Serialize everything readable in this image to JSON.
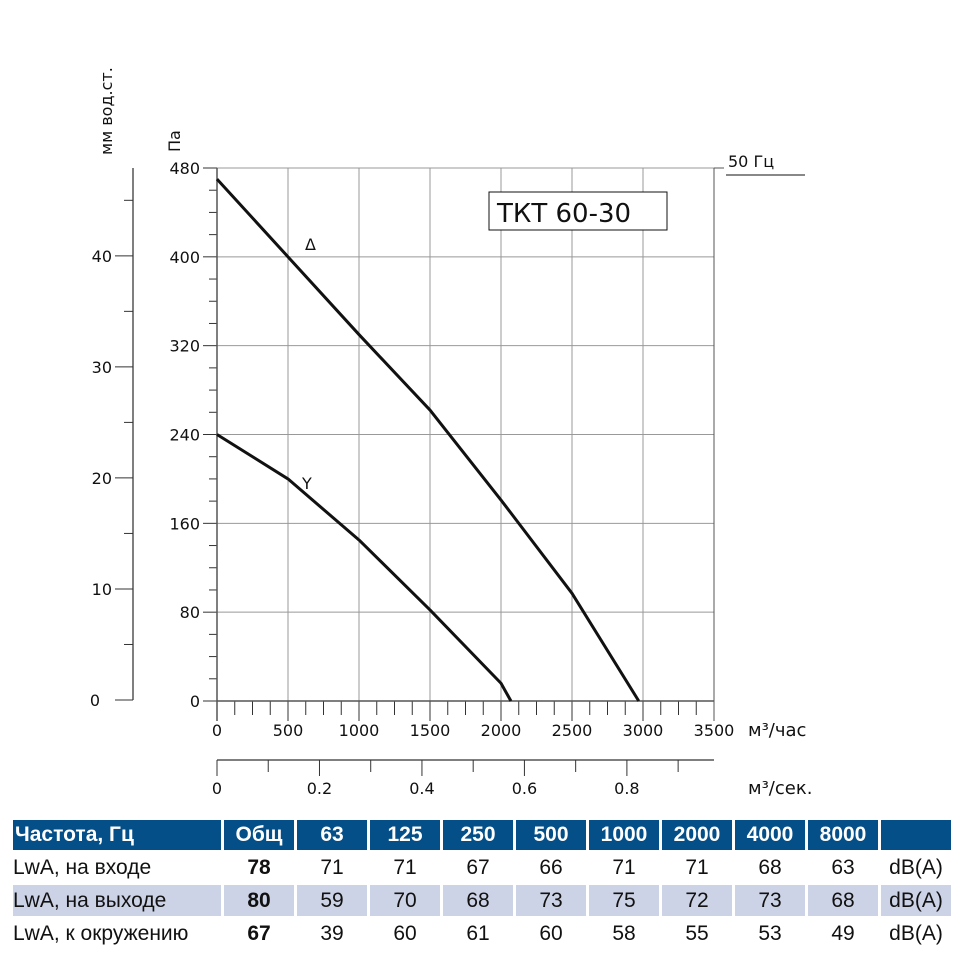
{
  "chart_data": {
    "type": "line",
    "title": "ТКТ 60-30",
    "frequency_label": "50 Гц",
    "xlabel": "м³/час",
    "x2label": "м³/сек.",
    "ylabel": "Па",
    "y2label": "мм вод.ст.",
    "xlim": [
      0,
      3500
    ],
    "ylim": [
      0,
      480
    ],
    "x2lim": [
      0,
      0.97
    ],
    "y2lim": [
      0,
      48
    ],
    "xticks": [
      "0",
      "500",
      "1000",
      "1500",
      "2000",
      "2500",
      "3000",
      "3500"
    ],
    "yticks": [
      "0",
      "80",
      "160",
      "240",
      "320",
      "400",
      "480"
    ],
    "x2ticks": [
      "0",
      "0.2",
      "0.4",
      "0.6",
      "0.8"
    ],
    "y2ticks": [
      "0",
      "10",
      "20",
      "30",
      "40"
    ],
    "grid": true,
    "series": [
      {
        "name": "Δ",
        "x": [
          0,
          500,
          1000,
          1500,
          2000,
          2500,
          2970
        ],
        "y": [
          470,
          400,
          330,
          262,
          181,
          97,
          0
        ]
      },
      {
        "name": "Y",
        "x": [
          0,
          500,
          1000,
          1500,
          2000,
          2070
        ],
        "y": [
          240,
          200,
          145,
          82,
          16,
          0
        ]
      }
    ]
  },
  "table": {
    "headers": [
      "Частота, Гц",
      "Общ",
      "63",
      "125",
      "250",
      "500",
      "1000",
      "2000",
      "4000",
      "8000",
      ""
    ],
    "rows": [
      {
        "label": "LwA, на входе",
        "total": "78",
        "values": [
          "71",
          "71",
          "67",
          "66",
          "71",
          "71",
          "68",
          "63"
        ],
        "unit": "dB(A)"
      },
      {
        "label": "LwA, на выходе",
        "total": "80",
        "values": [
          "59",
          "70",
          "68",
          "73",
          "75",
          "72",
          "73",
          "68"
        ],
        "unit": "dB(A)"
      },
      {
        "label": "LwA, к окружению",
        "total": "67",
        "values": [
          "39",
          "60",
          "61",
          "60",
          "58",
          "55",
          "53",
          "49"
        ],
        "unit": "dB(A)"
      }
    ]
  }
}
